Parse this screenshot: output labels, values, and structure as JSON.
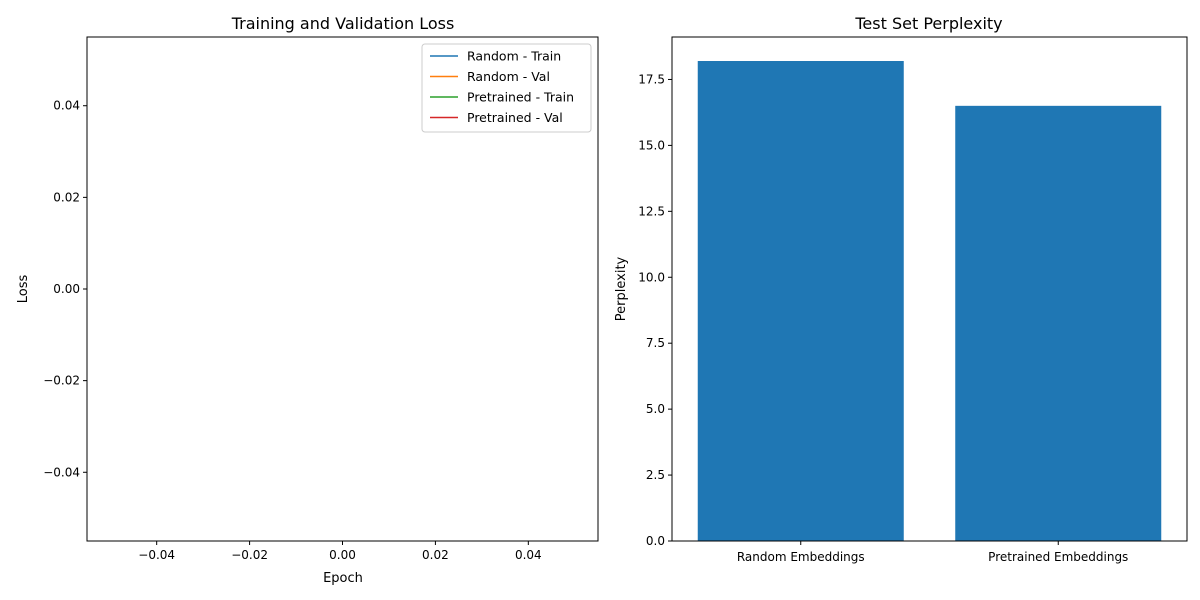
{
  "chart_data": [
    {
      "type": "line",
      "title": "Training and Validation Loss",
      "xlabel": "Epoch",
      "ylabel": "Loss",
      "xlim": [
        -0.055,
        0.055
      ],
      "ylim": [
        -0.055,
        0.055
      ],
      "x_ticks": [
        -0.04,
        -0.02,
        0.0,
        0.02,
        0.04
      ],
      "x_tick_labels": [
        "−0.04",
        "−0.02",
        "0.00",
        "0.02",
        "0.04"
      ],
      "y_ticks": [
        -0.04,
        -0.02,
        0.0,
        0.02,
        0.04
      ],
      "y_tick_labels": [
        "−0.04",
        "−0.02",
        "0.00",
        "0.02",
        "0.04"
      ],
      "grid": false,
      "legend_position": "top-right",
      "series": [
        {
          "name": "Random - Train",
          "color": "#1f77b4",
          "x": [],
          "y": []
        },
        {
          "name": "Random - Val",
          "color": "#ff7f0e",
          "x": [],
          "y": []
        },
        {
          "name": "Pretrained - Train",
          "color": "#2ca02c",
          "x": [],
          "y": []
        },
        {
          "name": "Pretrained - Val",
          "color": "#d62728",
          "x": [],
          "y": []
        }
      ]
    },
    {
      "type": "bar",
      "title": "Test Set Perplexity",
      "xlabel": "",
      "ylabel": "Perplexity",
      "categories": [
        "Random Embeddings",
        "Pretrained Embeddings"
      ],
      "values": [
        18.2,
        16.5
      ],
      "ylim": [
        0,
        19.11
      ],
      "y_ticks": [
        0,
        2.5,
        5,
        7.5,
        10,
        12.5,
        15,
        17.5
      ],
      "y_tick_labels": [
        "0.0",
        "2.5",
        "5.0",
        "7.5",
        "10.0",
        "12.5",
        "15.0",
        "17.5"
      ],
      "bar_color": "#1f77b4",
      "grid": false
    }
  ]
}
